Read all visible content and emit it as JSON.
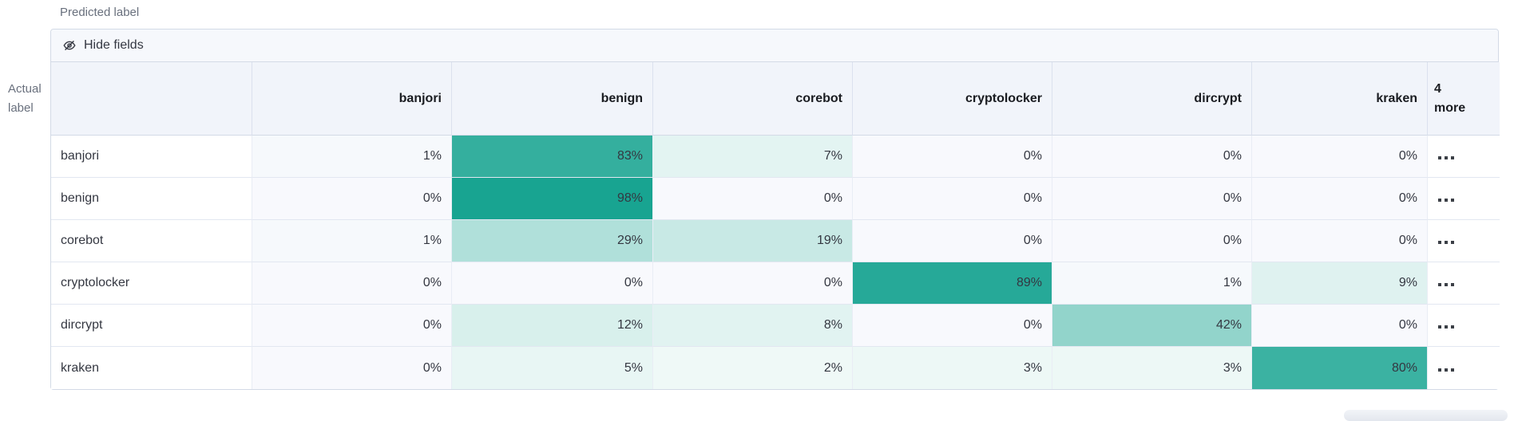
{
  "labels": {
    "predicted_axis": "Predicted label",
    "actual_axis_line1": "Actual",
    "actual_axis_line2": "label"
  },
  "toolbar": {
    "hide_fields": "Hide fields"
  },
  "more_column": {
    "count": "4",
    "word": "more"
  },
  "chart_data": {
    "type": "heatmap",
    "x_label": "Predicted label",
    "y_label": "Actual label",
    "columns": [
      "banjori",
      "benign",
      "corebot",
      "cryptolocker",
      "dircrypt",
      "kraken"
    ],
    "hidden_columns_note": "4 more",
    "rows": [
      "banjori",
      "benign",
      "corebot",
      "cryptolocker",
      "dircrypt",
      "kraken"
    ],
    "values_percent": [
      [
        1,
        83,
        7,
        0,
        0,
        0
      ],
      [
        0,
        98,
        0,
        0,
        0,
        0
      ],
      [
        1,
        29,
        19,
        0,
        0,
        0
      ],
      [
        0,
        0,
        0,
        89,
        1,
        9
      ],
      [
        0,
        12,
        8,
        0,
        42,
        0
      ],
      [
        0,
        5,
        2,
        3,
        3,
        80
      ]
    ],
    "value_suffix": "%",
    "legend_position": "none",
    "grid": true
  },
  "colors": {
    "heatmap_base": "#18a491",
    "zero_cell": "#f8f9fd",
    "one_cell": "#f6f9fc",
    "header_bg": "#f1f4fa",
    "toolbar_bg": "#f6f8fc",
    "border": "#d3dae6",
    "text": "#343741",
    "muted_text": "#69707d"
  }
}
